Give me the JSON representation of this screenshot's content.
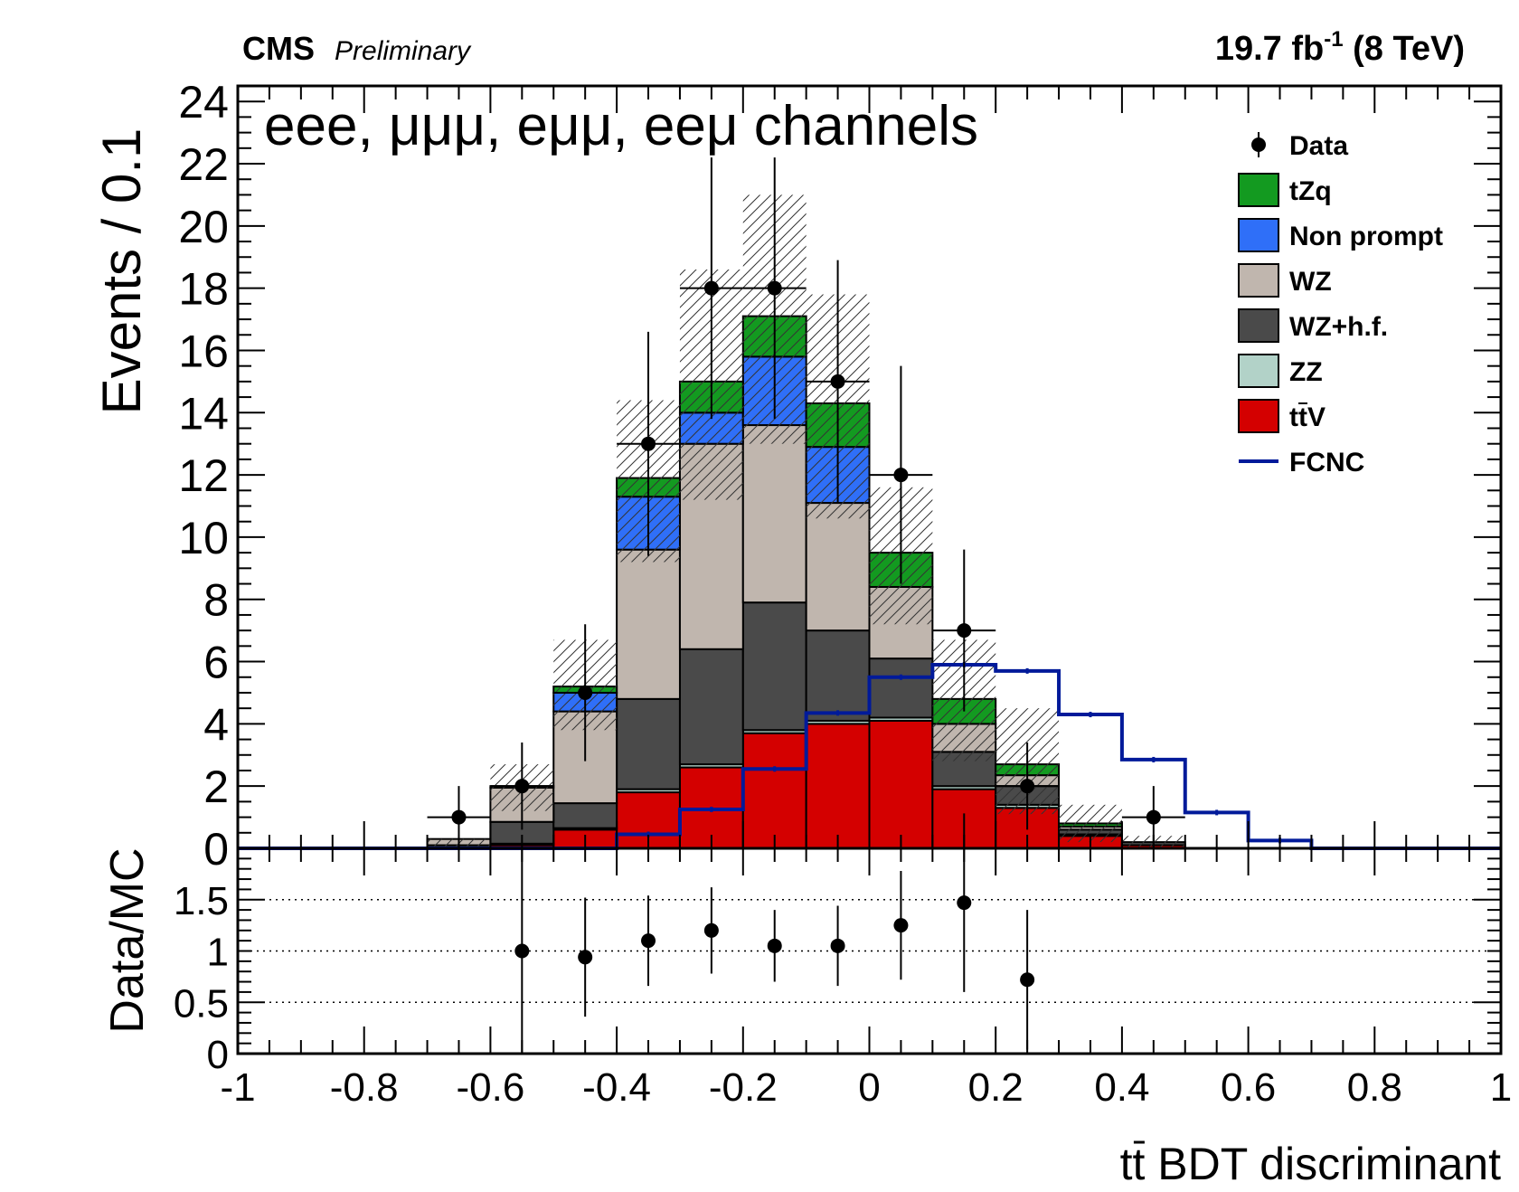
{
  "header": {
    "experiment": "CMS",
    "status": "Preliminary",
    "lumi_prefix": "19.7 fb",
    "lumi_exponent": "-1",
    "lumi_suffix": " (8 TeV)"
  },
  "chart_data": [
    {
      "type": "bar",
      "stacked": true,
      "histogram": true,
      "title": "",
      "annotation": "eee, μμμ, eμμ, eeμ channels",
      "ylabel": "Events / 0.1",
      "xlim": [
        -1,
        1
      ],
      "ylim": [
        0,
        24.5
      ],
      "yticks": [
        0,
        2,
        4,
        6,
        8,
        10,
        12,
        14,
        16,
        18,
        20,
        22,
        24
      ],
      "bin_edges": [
        -1.0,
        -0.9,
        -0.8,
        -0.7,
        -0.6,
        -0.5,
        -0.4,
        -0.3,
        -0.2,
        -0.1,
        0.0,
        0.1,
        0.2,
        0.3,
        0.4,
        0.5,
        0.6,
        0.7,
        0.8,
        0.9,
        1.0
      ],
      "legend_position": "top-right",
      "series": [
        {
          "name": "ttV",
          "label_main": "tt",
          "label_tail": "V",
          "color": "#d40000",
          "values": [
            0,
            0,
            0,
            0,
            0.1,
            0.6,
            1.8,
            2.6,
            3.7,
            4.0,
            4.1,
            1.9,
            1.3,
            0.4,
            0.1,
            0,
            0,
            0,
            0,
            0
          ]
        },
        {
          "name": "ZZ",
          "label_main": "ZZ",
          "label_tail": "",
          "color": "#b2d2c8",
          "values": [
            0,
            0,
            0,
            0,
            0.05,
            0.05,
            0.1,
            0.1,
            0.1,
            0.1,
            0.1,
            0.1,
            0.1,
            0.05,
            0,
            0,
            0,
            0,
            0,
            0
          ]
        },
        {
          "name": "WZ+h.f.",
          "label_main": "WZ+h.f.",
          "label_tail": "",
          "color": "#4a4a4a",
          "values": [
            0,
            0,
            0,
            0.1,
            0.7,
            0.8,
            2.9,
            3.7,
            4.1,
            2.9,
            1.9,
            1.1,
            0.6,
            0.15,
            0.1,
            0,
            0,
            0,
            0,
            0
          ]
        },
        {
          "name": "WZ",
          "label_main": "WZ",
          "label_tail": "",
          "color": "#c0b6ae",
          "values": [
            0,
            0,
            0,
            0.2,
            1.1,
            2.95,
            4.8,
            6.6,
            5.7,
            4.1,
            2.3,
            0.9,
            0.35,
            0.1,
            0,
            0,
            0,
            0,
            0,
            0
          ]
        },
        {
          "name": "Non prompt",
          "label_main": "Non prompt",
          "label_tail": "",
          "color": "#2f6ff8",
          "values": [
            0,
            0,
            0,
            0,
            0,
            0.6,
            1.7,
            1.0,
            2.2,
            1.8,
            0,
            0,
            0,
            0,
            0,
            0,
            0,
            0,
            0,
            0
          ]
        },
        {
          "name": "tZq",
          "label_main": "tZq",
          "label_tail": "",
          "color": "#139a20",
          "values": [
            0,
            0,
            0,
            0,
            0.05,
            0.2,
            0.6,
            1.0,
            1.3,
            1.4,
            1.1,
            0.8,
            0.35,
            0.1,
            0,
            0,
            0,
            0,
            0,
            0
          ]
        }
      ],
      "fcnc": {
        "name": "FCNC",
        "color": "#001a9a",
        "values": [
          0,
          0,
          0,
          0,
          0,
          0,
          0.45,
          1.25,
          2.55,
          4.35,
          5.5,
          5.9,
          5.7,
          4.3,
          2.85,
          1.15,
          0.25,
          0,
          0,
          0
        ]
      },
      "data": {
        "name": "Data",
        "points": [
          {
            "x": -0.65,
            "y": 1,
            "err": 1.0
          },
          {
            "x": -0.55,
            "y": 2,
            "err": 1.4
          },
          {
            "x": -0.45,
            "y": 5,
            "err": 2.2
          },
          {
            "x": -0.35,
            "y": 13,
            "err": 3.6
          },
          {
            "x": -0.25,
            "y": 18,
            "err": 4.2
          },
          {
            "x": -0.15,
            "y": 18,
            "err": 4.2
          },
          {
            "x": -0.05,
            "y": 15,
            "err": 3.9
          },
          {
            "x": 0.05,
            "y": 12,
            "err": 3.5
          },
          {
            "x": 0.15,
            "y": 7,
            "err": 2.6
          },
          {
            "x": 0.25,
            "y": 2,
            "err": 1.4
          },
          {
            "x": 0.45,
            "y": 1,
            "err": 1.0
          }
        ]
      },
      "uncertainty_band": {
        "upper": [
          0,
          0,
          0,
          0.3,
          2.7,
          6.7,
          14.4,
          18.6,
          21.0,
          17.8,
          11.6,
          6.7,
          4.5,
          1.4,
          0.4,
          0,
          0,
          0,
          0,
          0
        ],
        "lower": [
          0,
          0,
          0,
          0,
          1.2,
          3.8,
          9.2,
          11.2,
          13.0,
          10.6,
          7.2,
          2.8,
          1.1,
          0.2,
          0,
          0,
          0,
          0,
          0,
          0
        ]
      }
    },
    {
      "type": "scatter",
      "ylabel": "Data/MC",
      "xlabel_main": "tt",
      "xlabel_tail": " BDT discriminant",
      "xlim": [
        -1,
        1
      ],
      "ylim": [
        0,
        2
      ],
      "xticks": [
        -1,
        -0.8,
        -0.6,
        -0.4,
        -0.2,
        0,
        0.2,
        0.4,
        0.6,
        0.8,
        1
      ],
      "xtick_labels": [
        "-1",
        "-0.8",
        "-0.6",
        "-0.4",
        "-0.2",
        "0",
        "0.2",
        "0.4",
        "0.6",
        "0.8",
        "1"
      ],
      "yticks": [
        0,
        0.5,
        1,
        1.5
      ],
      "ytick_labels": [
        "0",
        "0.5",
        "1",
        "1.5"
      ],
      "grid_lines_y": [
        0.5,
        1,
        1.5
      ],
      "points": [
        {
          "x": -0.55,
          "y": 1.0,
          "lo": 1.0,
          "hi": 1.0
        },
        {
          "x": -0.45,
          "y": 0.94,
          "lo": 0.58,
          "hi": 0.58
        },
        {
          "x": -0.35,
          "y": 1.1,
          "lo": 0.44,
          "hi": 0.44
        },
        {
          "x": -0.25,
          "y": 1.2,
          "lo": 0.42,
          "hi": 0.42
        },
        {
          "x": -0.15,
          "y": 1.05,
          "lo": 0.35,
          "hi": 0.35
        },
        {
          "x": -0.05,
          "y": 1.05,
          "lo": 0.39,
          "hi": 0.39
        },
        {
          "x": 0.05,
          "y": 1.25,
          "lo": 0.53,
          "hi": 0.53
        },
        {
          "x": 0.15,
          "y": 1.47,
          "lo": 0.87,
          "hi": 0.87
        },
        {
          "x": 0.25,
          "y": 0.72,
          "lo": 0.68,
          "hi": 0.68
        }
      ]
    }
  ]
}
